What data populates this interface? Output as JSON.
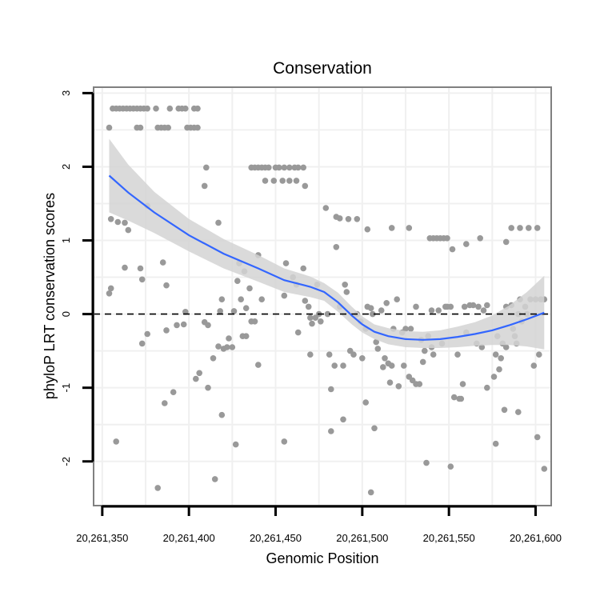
{
  "chart_data": {
    "type": "scatter",
    "title": "Conservation",
    "xlabel": "Genomic Position",
    "ylabel": "phyloP LRT conservation scores",
    "xlim": [
      20261345,
      20261609
    ],
    "ylim": [
      -2.6,
      3.08
    ],
    "xticks": [
      20261350,
      20261400,
      20261450,
      20261500,
      20261550,
      20261600
    ],
    "xtick_labels": [
      "20,261,350",
      "20,261,400",
      "20,261,450",
      "20,261,500",
      "20,261,550",
      "20,261,600"
    ],
    "yticks": [
      -2,
      -1,
      0,
      1,
      2,
      3
    ],
    "ytick_labels": [
      "-2",
      "-1",
      "0",
      "1",
      "2",
      "3"
    ],
    "reference_line": {
      "y": 0,
      "style": "dashed",
      "color": "#000000"
    },
    "grid": true,
    "colors": {
      "points": "#999999",
      "smooth": "#3366ff",
      "ribbon": "#d4d4d4",
      "panel": "#ffffff",
      "grid": "#f0f0f0",
      "border": "#808080"
    },
    "points": [
      [
        20261354,
        2.53
      ],
      [
        20261356,
        2.79
      ],
      [
        20261358,
        2.79
      ],
      [
        20261360,
        2.79
      ],
      [
        20261362,
        2.79
      ],
      [
        20261364,
        2.79
      ],
      [
        20261366,
        2.79
      ],
      [
        20261368,
        2.79
      ],
      [
        20261370,
        2.79
      ],
      [
        20261372,
        2.79
      ],
      [
        20261374,
        2.79
      ],
      [
        20261376,
        2.79
      ],
      [
        20261381,
        2.79
      ],
      [
        20261389,
        2.79
      ],
      [
        20261394,
        2.79
      ],
      [
        20261396,
        2.79
      ],
      [
        20261398,
        2.79
      ],
      [
        20261403,
        2.79
      ],
      [
        20261405,
        2.79
      ],
      [
        20261370,
        2.53
      ],
      [
        20261372,
        2.53
      ],
      [
        20261382,
        2.53
      ],
      [
        20261384,
        2.53
      ],
      [
        20261386,
        2.53
      ],
      [
        20261388,
        2.53
      ],
      [
        20261399,
        2.53
      ],
      [
        20261401,
        2.53
      ],
      [
        20261403,
        2.53
      ],
      [
        20261405,
        2.53
      ],
      [
        20261410,
        1.99
      ],
      [
        20261409,
        1.74
      ],
      [
        20261417,
        1.24
      ],
      [
        20261436,
        1.99
      ],
      [
        20261438,
        1.99
      ],
      [
        20261440,
        1.99
      ],
      [
        20261442,
        1.99
      ],
      [
        20261444,
        1.99
      ],
      [
        20261446,
        1.99
      ],
      [
        20261450,
        1.99
      ],
      [
        20261452,
        1.99
      ],
      [
        20261455,
        1.99
      ],
      [
        20261458,
        1.99
      ],
      [
        20261461,
        1.99
      ],
      [
        20261463,
        1.99
      ],
      [
        20261466,
        1.99
      ],
      [
        20261444,
        1.81
      ],
      [
        20261449,
        1.81
      ],
      [
        20261454,
        1.81
      ],
      [
        20261458,
        1.81
      ],
      [
        20261462,
        1.81
      ],
      [
        20261467,
        1.74
      ],
      [
        20261355,
        1.29
      ],
      [
        20261359,
        1.25
      ],
      [
        20261363,
        1.24
      ],
      [
        20261365,
        1.14
      ],
      [
        20261376,
        1.47
      ],
      [
        20261363,
        0.63
      ],
      [
        20261372,
        0.62
      ],
      [
        20261373,
        0.47
      ],
      [
        20261385,
        0.7
      ],
      [
        20261387,
        0.39
      ],
      [
        20261354,
        0.28
      ],
      [
        20261355,
        0.35
      ],
      [
        20261479,
        1.44
      ],
      [
        20261485,
        1.32
      ],
      [
        20261487,
        1.3
      ],
      [
        20261492,
        1.29
      ],
      [
        20261497,
        1.29
      ],
      [
        20261503,
        1.15
      ],
      [
        20261485,
        0.91
      ],
      [
        20261517,
        1.17
      ],
      [
        20261527,
        1.17
      ],
      [
        20261539,
        1.03
      ],
      [
        20261541,
        1.03
      ],
      [
        20261543,
        1.03
      ],
      [
        20261545,
        1.03
      ],
      [
        20261547,
        1.03
      ],
      [
        20261549,
        1.03
      ],
      [
        20261552,
        0.88
      ],
      [
        20261560,
        0.95
      ],
      [
        20261568,
        1.03
      ],
      [
        20261583,
        0.98
      ],
      [
        20261586,
        1.17
      ],
      [
        20261591,
        1.17
      ],
      [
        20261596,
        1.17
      ],
      [
        20261601,
        1.17
      ],
      [
        20261373,
        -0.4
      ],
      [
        20261376,
        -0.27
      ],
      [
        20261387,
        -0.22
      ],
      [
        20261393,
        -0.15
      ],
      [
        20261397,
        -0.14
      ],
      [
        20261398,
        0.03
      ],
      [
        20261409,
        -0.11
      ],
      [
        20261411,
        -0.15
      ],
      [
        20261417,
        -0.44
      ],
      [
        20261420,
        -0.47
      ],
      [
        20261422,
        -0.45
      ],
      [
        20261418,
        0.04
      ],
      [
        20261426,
        0.04
      ],
      [
        20261423,
        -0.33
      ],
      [
        20261425,
        -0.45
      ],
      [
        20261419,
        0.2
      ],
      [
        20261429,
        0.69
      ],
      [
        20261432,
        0.58
      ],
      [
        20261430,
        0.2
      ],
      [
        20261428,
        0.45
      ],
      [
        20261431,
        -0.3
      ],
      [
        20261433,
        -0.3
      ],
      [
        20261433,
        0.08
      ],
      [
        20261436,
        -0.1
      ],
      [
        20261438,
        -0.1
      ],
      [
        20261440,
        0.8
      ],
      [
        20261435,
        0.35
      ],
      [
        20261442,
        0.2
      ],
      [
        20261440,
        -0.69
      ],
      [
        20261455,
        0.25
      ],
      [
        20261456,
        0.69
      ],
      [
        20261460,
        0.5
      ],
      [
        20261462,
        0.4
      ],
      [
        20261463,
        -0.25
      ],
      [
        20261466,
        0.62
      ],
      [
        20261467,
        0.18
      ],
      [
        20261469,
        0.1
      ],
      [
        20261470,
        -0.05
      ],
      [
        20261471,
        -0.13
      ],
      [
        20261473,
        -0.05
      ],
      [
        20261475,
        0.0
      ],
      [
        20261474,
        0.4
      ],
      [
        20261476,
        -0.1
      ],
      [
        20261480,
        0.0
      ],
      [
        20261481,
        -0.55
      ],
      [
        20261482,
        -1.02
      ],
      [
        20261484,
        -0.7
      ],
      [
        20261487,
        0.1
      ],
      [
        20261489,
        -0.7
      ],
      [
        20261490,
        0.4
      ],
      [
        20261491,
        0.3
      ],
      [
        20261493,
        -0.5
      ],
      [
        20261495,
        -0.55
      ],
      [
        20261497,
        0.0
      ],
      [
        20261499,
        -0.1
      ],
      [
        20261500,
        -0.6
      ],
      [
        20261502,
        -0.2
      ],
      [
        20261503,
        0.1
      ],
      [
        20261505,
        0.08
      ],
      [
        20261506,
        0.0
      ],
      [
        20261508,
        -0.38
      ],
      [
        20261509,
        -0.47
      ],
      [
        20261511,
        0.05
      ],
      [
        20261512,
        -0.72
      ],
      [
        20261513,
        -0.6
      ],
      [
        20261514,
        0.15
      ],
      [
        20261515,
        -0.67
      ],
      [
        20261516,
        -0.93
      ],
      [
        20261517,
        -0.7
      ],
      [
        20261518,
        -0.2
      ],
      [
        20261520,
        0.2
      ],
      [
        20261521,
        -0.98
      ],
      [
        20261523,
        -0.25
      ],
      [
        20261524,
        -0.7
      ],
      [
        20261525,
        -0.2
      ],
      [
        20261527,
        -0.85
      ],
      [
        20261528,
        -0.2
      ],
      [
        20261529,
        -0.9
      ],
      [
        20261531,
        -0.95
      ],
      [
        20261533,
        -0.95
      ],
      [
        20261531,
        0.1
      ],
      [
        20261534,
        -0.35
      ],
      [
        20261535,
        -0.65
      ],
      [
        20261536,
        -0.5
      ],
      [
        20261538,
        -0.3
      ],
      [
        20261540,
        -0.45
      ],
      [
        20261541,
        -0.55
      ],
      [
        20261540,
        0.05
      ],
      [
        20261544,
        0.05
      ],
      [
        20261546,
        -0.4
      ],
      [
        20261548,
        0.1
      ],
      [
        20261549,
        0.1
      ],
      [
        20261551,
        0.1
      ],
      [
        20261553,
        -1.13
      ],
      [
        20261555,
        -0.55
      ],
      [
        20261557,
        -1.15
      ],
      [
        20261558,
        -0.95
      ],
      [
        20261560,
        -0.25
      ],
      [
        20261559,
        0.1
      ],
      [
        20261562,
        0.12
      ],
      [
        20261564,
        0.12
      ],
      [
        20261566,
        -0.4
      ],
      [
        20261567,
        0.1
      ],
      [
        20261569,
        -0.45
      ],
      [
        20261570,
        0.05
      ],
      [
        20261572,
        -1.0
      ],
      [
        20261572,
        0.12
      ],
      [
        20261576,
        -0.85
      ],
      [
        20261577,
        -0.55
      ],
      [
        20261578,
        -0.3
      ],
      [
        20261579,
        -0.75
      ],
      [
        20261580,
        -0.6
      ],
      [
        20261581,
        -0.4
      ],
      [
        20261583,
        -0.45
      ],
      [
        20261583,
        0.1
      ],
      [
        20261586,
        0.12
      ],
      [
        20261587,
        -0.2
      ],
      [
        20261588,
        -0.3
      ],
      [
        20261589,
        -0.4
      ],
      [
        20261590,
        0.0
      ],
      [
        20261591,
        0.2
      ],
      [
        20261592,
        -0.1
      ],
      [
        20261594,
        0.1
      ],
      [
        20261595,
        0.0
      ],
      [
        20261597,
        0.2
      ],
      [
        20261599,
        -0.7
      ],
      [
        20261600,
        0.2
      ],
      [
        20261602,
        -0.55
      ],
      [
        20261603,
        0.2
      ],
      [
        20261605,
        0.2
      ],
      [
        20261358,
        -1.73
      ],
      [
        20261382,
        -2.36
      ],
      [
        20261386,
        -1.21
      ],
      [
        20261391,
        -1.06
      ],
      [
        20261404,
        -0.88
      ],
      [
        20261406,
        -0.8
      ],
      [
        20261411,
        -1.0
      ],
      [
        20261414,
        -0.6
      ],
      [
        20261415,
        -2.24
      ],
      [
        20261419,
        -1.37
      ],
      [
        20261427,
        -1.77
      ],
      [
        20261455,
        -1.73
      ],
      [
        20261470,
        -0.55
      ],
      [
        20261482,
        -1.59
      ],
      [
        20261489,
        -1.43
      ],
      [
        20261502,
        -1.2
      ],
      [
        20261505,
        -2.42
      ],
      [
        20261507,
        -1.55
      ],
      [
        20261537,
        -2.02
      ],
      [
        20261551,
        -2.07
      ],
      [
        20261556,
        -1.15
      ],
      [
        20261577,
        -1.76
      ],
      [
        20261582,
        -1.3
      ],
      [
        20261590,
        -1.33
      ],
      [
        20261601,
        -1.67
      ],
      [
        20261605,
        -2.1
      ]
    ],
    "smooth": {
      "x": [
        20261354,
        20261365,
        20261380,
        20261400,
        20261420,
        20261440,
        20261455,
        20261470,
        20261478,
        20261486,
        20261494,
        20261500,
        20261507,
        20261515,
        20261525,
        20261535,
        20261545,
        20261555,
        20261565,
        20261575,
        20261585,
        20261595,
        20261605
      ],
      "y": [
        1.88,
        1.65,
        1.38,
        1.07,
        0.82,
        0.62,
        0.46,
        0.37,
        0.3,
        0.16,
        -0.02,
        -0.14,
        -0.24,
        -0.3,
        -0.34,
        -0.35,
        -0.34,
        -0.31,
        -0.27,
        -0.22,
        -0.15,
        -0.07,
        0.02
      ],
      "lower": [
        1.38,
        1.27,
        1.1,
        0.85,
        0.62,
        0.44,
        0.3,
        0.23,
        0.18,
        0.03,
        -0.14,
        -0.25,
        -0.34,
        -0.41,
        -0.45,
        -0.46,
        -0.46,
        -0.45,
        -0.43,
        -0.42,
        -0.42,
        -0.44,
        -0.48
      ],
      "upper": [
        2.38,
        2.03,
        1.66,
        1.29,
        1.02,
        0.8,
        0.62,
        0.51,
        0.42,
        0.29,
        0.1,
        -0.03,
        -0.14,
        -0.19,
        -0.23,
        -0.24,
        -0.22,
        -0.17,
        -0.11,
        -0.02,
        0.12,
        0.3,
        0.52
      ]
    }
  }
}
